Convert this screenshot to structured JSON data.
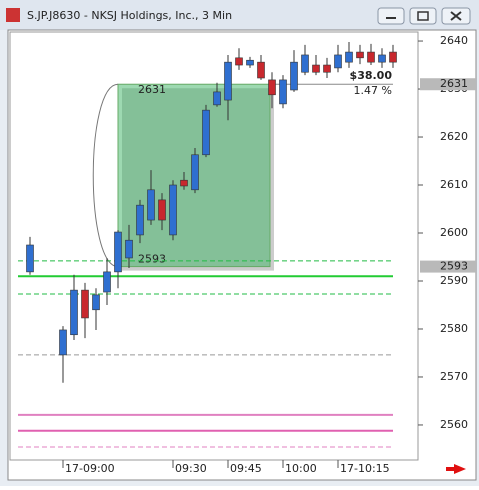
{
  "chart_data": {
    "type": "candlestick",
    "title": "S.JP.J8630 - NKSJ Holdings, Inc., 3 Min",
    "categories": [
      null,
      null,
      null,
      "17-09:00",
      null,
      null,
      null,
      null,
      null,
      null,
      null,
      null,
      null,
      "09:30",
      null,
      null,
      null,
      null,
      "09:45",
      null,
      null,
      null,
      null,
      "10:00",
      null,
      null,
      null,
      null,
      "17-10:15",
      null,
      null,
      null,
      null,
      null
    ],
    "open": [
      2591.9,
      null,
      null,
      2574.6,
      2578.8,
      2588.1,
      2584.0,
      2587.7,
      2591.9,
      2594.8,
      2599.6,
      2602.7,
      2606.9,
      2599.6,
      2611.0,
      2609.0,
      2616.3,
      2626.7,
      2627.7,
      2636.5,
      2635.0,
      2635.6,
      2631.9,
      2626.9,
      2629.8,
      2633.5,
      2635.0,
      2635.0,
      2634.4,
      2635.6,
      2637.7,
      2637.7,
      2635.6,
      2637.7
    ],
    "high": [
      2599.2,
      null,
      null,
      2580.6,
      2591.3,
      2589.6,
      2588.5,
      2594.8,
      2600.6,
      2601.7,
      2606.9,
      2613.1,
      2608.3,
      2611.0,
      2612.7,
      2617.7,
      2626.7,
      2631.3,
      2637.1,
      2638.5,
      2636.7,
      2637.1,
      2633.5,
      2632.9,
      2638.1,
      2639.2,
      2637.1,
      2636.5,
      2639.2,
      2639.8,
      2639.2,
      2639.4,
      2638.5,
      2639.2
    ],
    "low": [
      2591.3,
      null,
      null,
      2568.8,
      2577.7,
      2578.1,
      2579.8,
      2585.0,
      2588.5,
      2592.7,
      2597.9,
      2601.7,
      2600.6,
      2598.5,
      2609.0,
      2608.3,
      2615.8,
      2626.3,
      2623.5,
      2634.0,
      2634.4,
      2631.9,
      2626.0,
      2626.0,
      2629.4,
      2632.9,
      2632.9,
      2632.3,
      2633.5,
      2634.4,
      2635.2,
      2635.0,
      2634.4,
      2634.4
    ],
    "close": [
      2597.5,
      null,
      null,
      2579.8,
      2588.1,
      2582.3,
      2587.1,
      2591.9,
      2600.2,
      2598.5,
      2605.8,
      2609.0,
      2602.7,
      2610.0,
      2609.8,
      2616.3,
      2625.6,
      2629.4,
      2635.6,
      2635.0,
      2636.0,
      2632.3,
      2628.8,
      2631.9,
      2635.6,
      2637.1,
      2633.5,
      2633.5,
      2637.1,
      2637.7,
      2636.5,
      2635.6,
      2637.1,
      2635.6
    ],
    "up_color": "#2f6fd0",
    "down_color": "#c8282e",
    "ylim": [
      2552.7,
      2642.3
    ],
    "yticks": [
      2560,
      2570,
      2580,
      2590,
      2600,
      2610,
      2620,
      2630,
      2640
    ],
    "levels": [
      {
        "value": 2594.2,
        "color": "#22bb44",
        "dash": true
      },
      {
        "value": 2591.0,
        "color": "#22cc33",
        "dash": false
      },
      {
        "value": 2587.3,
        "color": "#22bb44",
        "dash": true
      },
      {
        "value": 2574.6,
        "color": "#999999",
        "dash": true
      },
      {
        "value": 2562.1,
        "color": "#e080c0",
        "dash": false
      },
      {
        "value": 2558.8,
        "color": "#e060b0",
        "dash": false
      },
      {
        "value": 2555.4,
        "color": "#e080c0",
        "dash": true
      }
    ],
    "measure": {
      "high": 2631,
      "low": 2593,
      "change_label": "$38.00",
      "percent_label": "1.47 %",
      "color": "#3cb464"
    }
  }
}
